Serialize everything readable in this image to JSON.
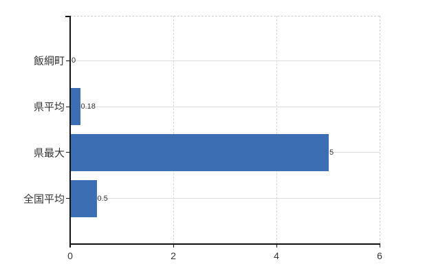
{
  "chart_data": {
    "type": "bar",
    "orientation": "horizontal",
    "title": "",
    "xlabel": "",
    "ylabel": "",
    "categories": [
      "飯綱町",
      "県平均",
      "県最大",
      "全国平均"
    ],
    "values": [
      0,
      0.18,
      5,
      0.5
    ],
    "value_labels": [
      "0",
      "0.18",
      "5",
      "0.5"
    ],
    "x_ticks": [
      0,
      2,
      4,
      6
    ],
    "x_tick_labels": [
      "0",
      "2",
      "4",
      "6"
    ],
    "xlim": [
      0,
      6
    ],
    "grid": true,
    "legend_position": "none",
    "colors": {
      "bar": "#3c6eb4",
      "grid_horizontal": "#d9ded9",
      "grid_vertical": "#d6d6d6",
      "plot_border_dashed": "#cccccc",
      "axis": "#111111",
      "text": "#333333"
    }
  }
}
